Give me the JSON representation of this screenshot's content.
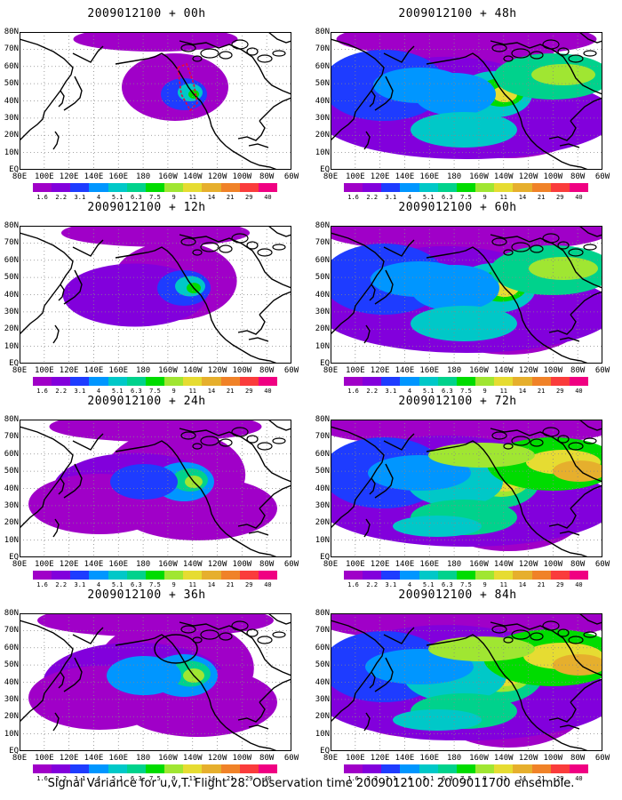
{
  "panels": [
    {
      "title": "2009012100 + 00h",
      "level": 0,
      "annotation": "dashed-outline"
    },
    {
      "title": "2009012100 + 12h",
      "level": 1
    },
    {
      "title": "2009012100 + 24h",
      "level": 2
    },
    {
      "title": "2009012100 + 36h",
      "level": 3,
      "annotation": "circle"
    },
    {
      "title": "2009012100 + 48h",
      "level": 4
    },
    {
      "title": "2009012100 + 60h",
      "level": 5
    },
    {
      "title": "2009012100 + 72h",
      "level": 6
    },
    {
      "title": "2009012100 + 84h",
      "level": 7
    }
  ],
  "lat_labels": [
    "80N",
    "70N",
    "60N",
    "50N",
    "40N",
    "30N",
    "20N",
    "10N",
    "EQ"
  ],
  "lon_labels": [
    "80E",
    "100E",
    "120E",
    "140E",
    "160E",
    "180",
    "160W",
    "140W",
    "120W",
    "100W",
    "80W",
    "60W"
  ],
  "colorbar": {
    "labels": [
      "1.6",
      "2.2",
      "3.1",
      "4",
      "5.1",
      "6.3",
      "7.5",
      "9",
      "11",
      "14",
      "21",
      "29",
      "40"
    ],
    "colors": [
      "#a000c8",
      "#8200dc",
      "#1e3cff",
      "#0096ff",
      "#00c8c8",
      "#00d28c",
      "#00dc00",
      "#a0e632",
      "#e6dc32",
      "#e6af2d",
      "#f08228",
      "#fa3c3c",
      "#f00082"
    ]
  },
  "caption": "Signal Variance for u,v,T. Flight 28. Observation time 2009012100. 2009011700 ensemble."
}
